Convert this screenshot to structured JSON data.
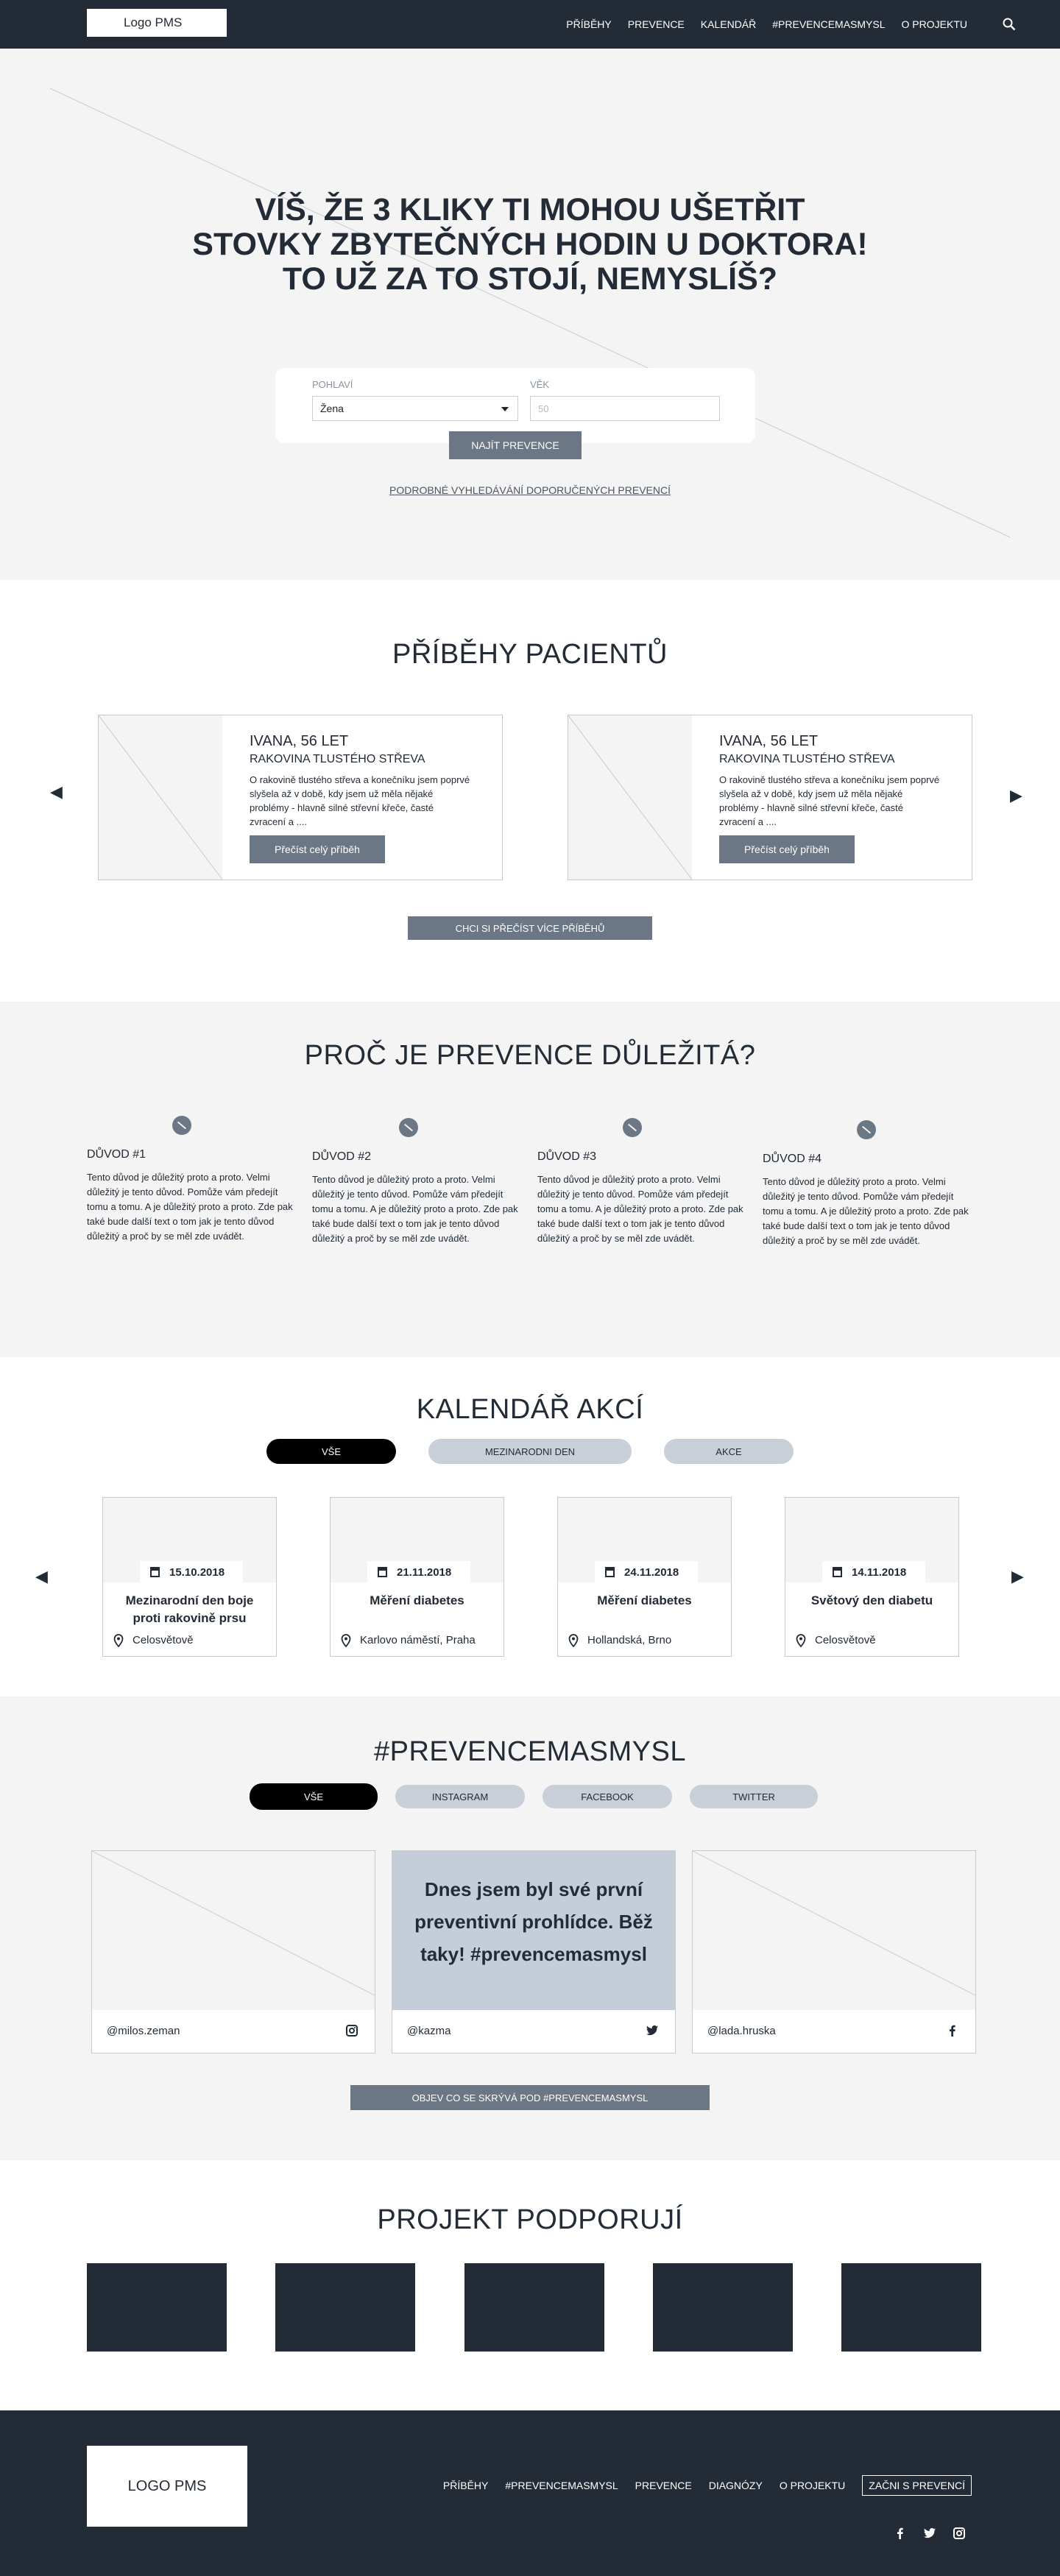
{
  "nav": {
    "logo": "Logo PMS",
    "items": [
      "PŘÍBĚHY",
      "PREVENCE",
      "KALENDÁŘ",
      "#PREVENCEMASMYSL",
      "O PROJEKTU"
    ]
  },
  "hero": {
    "title_line1": "VÍŠ, ŽE 3 KLIKY TI MOHOU UŠETŘIT",
    "title_line2": "STOVKY ZBYTEČNÝCH HODIN U DOKTORA!",
    "title_line3": "TO UŽ ZA TO STOJÍ, NEMYSLÍŠ?",
    "gender_label": "POHLAVÍ",
    "gender_value": "Žena",
    "age_label": "VĚK",
    "age_placeholder": "50",
    "find_button": "NAJÍT PREVENCE",
    "advanced_link": "PODROBNÉ VYHLEDÁVÁNÍ DOPORUČENÝCH PREVENCÍ"
  },
  "stories": {
    "title": "PŘÍBĚHY PACIENTŮ",
    "items": [
      {
        "name": "IVANA, 56 LET",
        "diagnosis": "RAKOVINA TLUSTÉHO STŘEVA",
        "text": "O rakovině tlustého střeva a konečníku jsem poprvé slyšela až v době, kdy jsem už měla nějaké problémy - hlavně silné střevní křeče, časté zvracení a ....",
        "button": "Přečíst celý příběh"
      },
      {
        "name": "IVANA, 56 LET",
        "diagnosis": "RAKOVINA TLUSTÉHO STŘEVA",
        "text": "O rakovině tlustého střeva a konečníku jsem poprvé slyšela až v době, kdy jsem už měla nějaké problémy - hlavně silné střevní křeče, časté zvracení a ....",
        "button": "Přečíst celý příběh"
      }
    ],
    "more_button": "CHCI SI PŘEČÍST VÍCE PŘÍBĚHŮ"
  },
  "why": {
    "title": "PROČ JE PREVENCE DŮLEŽITÁ?",
    "reasons": [
      {
        "title": "DŮVOD #1",
        "text": "Tento důvod je důležitý proto a proto. Velmi důležitý je tento důvod. Pomůže vám předejít tomu a tomu. A je důležitý proto a proto. Zde pak také bude další text o tom jak je tento důvod důležitý a proč by se měl zde uvádět."
      },
      {
        "title": "DŮVOD #2",
        "text": "Tento důvod je důležitý proto a proto. Velmi důležitý je tento důvod. Pomůže vám předejít tomu a tomu. A je důležitý proto a proto. Zde pak také bude další text o tom jak je tento důvod důležitý a proč by se měl zde uvádět."
      },
      {
        "title": "DŮVOD #3",
        "text": "Tento důvod je důležitý proto a proto. Velmi důležitý je tento důvod. Pomůže vám předejít tomu a tomu. A je důležitý proto a proto. Zde pak také bude další text o tom jak je tento důvod důležitý a proč by se měl zde uvádět."
      },
      {
        "title": "DŮVOD #4",
        "text": "Tento důvod je důležitý proto a proto. Velmi důležitý je tento důvod. Pomůže vám předejít tomu a tomu. A je důležitý proto a proto. Zde pak také bude další text o tom jak je tento důvod důležitý a proč by se měl zde uvádět."
      }
    ]
  },
  "calendar": {
    "title": "KALENDÁŘ AKCÍ",
    "filters": [
      "VŠE",
      "MEZINARODNI DEN",
      "AKCE"
    ],
    "events": [
      {
        "date": "15.10.2018",
        "title": "Mezinarodní den boje proti rakovině prsu",
        "place": "Celosvětově"
      },
      {
        "date": "21.11.2018",
        "title": "Měření diabetes",
        "place": "Karlovo náměstí, Praha"
      },
      {
        "date": "24.11.2018",
        "title": "Měření diabetes",
        "place": "Hollandská, Brno"
      },
      {
        "date": "14.11.2018",
        "title": "Světový den diabetu",
        "place": "Celosvětově"
      }
    ]
  },
  "social": {
    "title": "#PREVENCEMASMYSL",
    "filters": [
      "VŠE",
      "INSTAGRAM",
      "FACEBOOK",
      "TWITTER"
    ],
    "posts": [
      {
        "handle": "@milos.zeman",
        "network": "instagram-icon"
      },
      {
        "handle": "@kazma",
        "network": "twitter-icon",
        "quote": "Dnes jsem byl své první preventivní prohlídce. Běž taky! #prevencemasmysl"
      },
      {
        "handle": "@lada.hruska",
        "network": "facebook-icon"
      }
    ],
    "more_button": "OBJEV CO SE SKRÝVÁ POD #PREVENCEMASMYSL"
  },
  "support": {
    "title": "PROJEKT PODPORUJÍ"
  },
  "footer": {
    "logo": "LOGO PMS",
    "links": [
      "PŘÍBĚHY",
      "#PREVENCEMASMYSL",
      "PREVENCE",
      "DIAGNÓZY",
      "O PROJEKTU"
    ],
    "cta": "ZAČNI S PREVENCÍ"
  },
  "colors": {
    "dark": "#232b36",
    "button": "#6b7785",
    "light_bg": "#f3f4f3",
    "pill_inactive": "#c8cfd8",
    "quote_bg": "#c5cdd8"
  }
}
